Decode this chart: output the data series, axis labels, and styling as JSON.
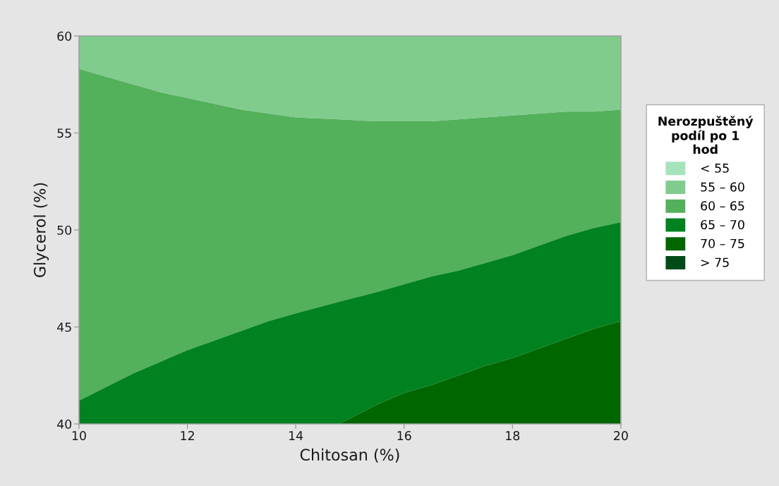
{
  "chart_data": {
    "type": "area",
    "xlabel": "Chitosan (%)",
    "ylabel": "Glycerol (%)",
    "legend_title": "Nerozpuštěný\npodíl po 1\nhod",
    "xlim": [
      10,
      20
    ],
    "ylim": [
      40,
      60
    ],
    "xticks": [
      10,
      12,
      14,
      16,
      18,
      20
    ],
    "yticks": [
      40,
      45,
      50,
      55,
      60
    ],
    "legend": "right",
    "series": [
      {
        "name": "< 55",
        "color": "#a6e3bb"
      },
      {
        "name": "55 – 60",
        "color": "#80cc8d",
        "x": [
          10,
          10.5,
          11,
          11.5,
          12,
          12.5,
          13,
          13.5,
          14,
          14.8,
          15.5,
          16,
          16.5,
          17,
          17.5,
          18,
          18.5,
          19,
          19.5,
          20
        ],
        "values": [
          60,
          60,
          60,
          60,
          60,
          60,
          60,
          60,
          60,
          60,
          60,
          60,
          60,
          60,
          60,
          60,
          60,
          60,
          60,
          60
        ]
      },
      {
        "name": "60 – 65",
        "color": "#53b05b",
        "x": [
          10,
          10.5,
          11,
          11.5,
          12,
          12.5,
          13,
          13.5,
          14,
          14.8,
          15.5,
          16,
          16.5,
          17,
          17.5,
          18,
          18.5,
          19,
          19.5,
          20
        ],
        "values": [
          58.3,
          57.9,
          57.5,
          57.1,
          56.8,
          56.5,
          56.2,
          56.0,
          55.8,
          55.7,
          55.6,
          55.6,
          55.6,
          55.7,
          55.8,
          55.9,
          56.0,
          56.1,
          56.1,
          56.2
        ]
      },
      {
        "name": "65 – 70",
        "color": "#008220",
        "x": [
          10,
          10.5,
          11,
          11.5,
          12,
          12.5,
          13,
          13.5,
          14,
          14.8,
          15.5,
          16,
          16.5,
          17,
          17.5,
          18,
          18.5,
          19,
          19.5,
          20
        ],
        "values": [
          41.2,
          41.9,
          42.6,
          43.2,
          43.8,
          44.3,
          44.8,
          45.3,
          45.7,
          46.3,
          46.8,
          47.2,
          47.6,
          47.9,
          48.3,
          48.7,
          49.2,
          49.7,
          50.1,
          50.4
        ]
      },
      {
        "name": "70 – 75",
        "color": "#006700",
        "x": [
          14.8,
          15.5,
          16,
          16.5,
          17,
          17.5,
          18,
          18.5,
          19,
          19.5,
          20
        ],
        "values": [
          40,
          41.0,
          41.6,
          42.0,
          42.5,
          43.0,
          43.4,
          43.9,
          44.4,
          44.9,
          45.3
        ]
      },
      {
        "name": "> 75",
        "color": "#004a18"
      }
    ]
  }
}
